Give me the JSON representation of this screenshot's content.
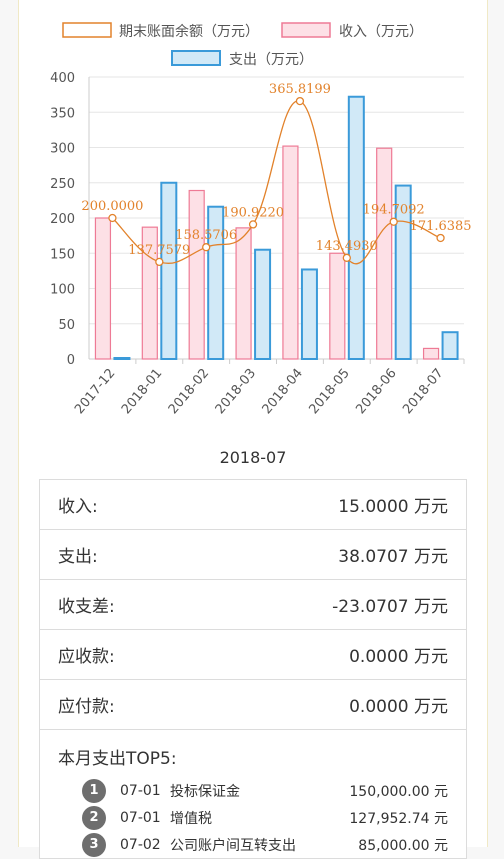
{
  "chart_data": {
    "type": "bar",
    "categories": [
      "2017-12",
      "2018-01",
      "2018-02",
      "2018-03",
      "2018-04",
      "2018-05",
      "2018-06",
      "2018-07"
    ],
    "series": [
      {
        "name": "期末账面余额（万元）",
        "type": "line",
        "values": [
          200.0,
          137.7579,
          158.5706,
          190.922,
          365.8199,
          143.493,
          194.7092,
          171.6385
        ],
        "labels": [
          "200.0000",
          "137.7579",
          "158.5706",
          "190.9220",
          "365.8199",
          "143.4930",
          "194.7092",
          "171.6385"
        ]
      },
      {
        "name": "收入（万元）",
        "type": "bar",
        "values": [
          200,
          187,
          239,
          186,
          302,
          150,
          299,
          15
        ]
      },
      {
        "name": "支出（万元）",
        "type": "bar",
        "values": [
          0,
          250,
          216,
          155,
          127,
          372,
          246,
          38
        ]
      }
    ],
    "ylim": [
      0,
      400
    ],
    "yticks": [
      "0",
      "50",
      "100",
      "150",
      "200",
      "250",
      "300",
      "350",
      "400"
    ],
    "colors": {
      "balance": "#e2822b",
      "income_fill": "#fde0e6",
      "income_stroke": "#ee7a95",
      "expense_fill": "#d1e9f7",
      "expense_stroke": "#3a9ad9",
      "grid": "#e6e6e6"
    },
    "legend_position": "top"
  },
  "period": "2018-07",
  "summary": [
    {
      "label": "收入:",
      "value": "15.0000 万元"
    },
    {
      "label": "支出:",
      "value": "38.0707 万元"
    },
    {
      "label": "收支差:",
      "value": "-23.0707 万元"
    },
    {
      "label": "应收款:",
      "value": "0.0000 万元"
    },
    {
      "label": "应付款:",
      "value": "0.0000 万元"
    }
  ],
  "top5": {
    "title": "本月支出TOP5:",
    "items": [
      {
        "rank": "1",
        "date": "07-01",
        "name": "投标保证金",
        "amount": "150,000.00 元"
      },
      {
        "rank": "2",
        "date": "07-01",
        "name": "增值税",
        "amount": "127,952.74 元"
      },
      {
        "rank": "3",
        "date": "07-02",
        "name": "公司账户间互转支出",
        "amount": "85,000.00 元"
      }
    ]
  }
}
